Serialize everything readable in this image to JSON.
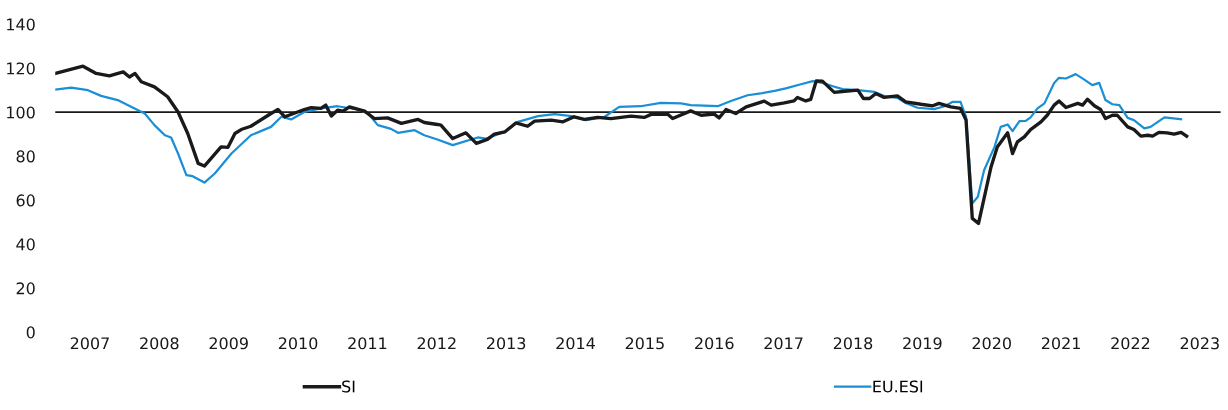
{
  "chart_data": {
    "type": "line",
    "xlim": [
      2007.0,
      2023.8
    ],
    "ylim": [
      0,
      140
    ],
    "yticks": [
      0,
      20,
      40,
      60,
      80,
      100,
      120,
      140
    ],
    "xticks": [
      {
        "value": 2007.5,
        "label": "2007"
      },
      {
        "value": 2008.5,
        "label": "2008"
      },
      {
        "value": 2009.5,
        "label": "2009"
      },
      {
        "value": 2010.5,
        "label": "2010"
      },
      {
        "value": 2011.5,
        "label": "2011"
      },
      {
        "value": 2012.5,
        "label": "2012"
      },
      {
        "value": 2013.5,
        "label": "2013"
      },
      {
        "value": 2014.5,
        "label": "2014"
      },
      {
        "value": 2015.5,
        "label": "2015"
      },
      {
        "value": 2016.5,
        "label": "2016"
      },
      {
        "value": 2017.5,
        "label": "2017"
      },
      {
        "value": 2018.5,
        "label": "2018"
      },
      {
        "value": 2019.5,
        "label": "2019"
      },
      {
        "value": 2020.5,
        "label": "2020"
      },
      {
        "value": 2021.5,
        "label": "2021"
      },
      {
        "value": 2022.5,
        "label": "2022"
      },
      {
        "value": 2023.5,
        "label": "2023"
      }
    ],
    "grid": false,
    "legend": "bottom",
    "marker": "none",
    "line_style": "solid",
    "ref_lines": [
      {
        "axis": "y",
        "value": 100,
        "color": "#1a1a1a"
      }
    ],
    "series": [
      {
        "name": "SI",
        "color": "#1a1a1a",
        "x": [
          2007.0,
          2007.4,
          2007.59,
          2007.78,
          2007.98,
          2008.07,
          2008.15,
          2008.24,
          2008.43,
          2008.62,
          2008.77,
          2008.91,
          2009.06,
          2009.15,
          2009.39,
          2009.49,
          2009.59,
          2009.68,
          2009.82,
          2010.11,
          2010.21,
          2010.31,
          2010.59,
          2010.69,
          2010.83,
          2010.9,
          2010.98,
          2011.07,
          2011.15,
          2011.24,
          2011.46,
          2011.6,
          2011.79,
          2011.99,
          2012.23,
          2012.32,
          2012.51,
          2012.56,
          2012.73,
          2012.92,
          2013.07,
          2013.23,
          2013.33,
          2013.48,
          2013.64,
          2013.81,
          2013.91,
          2014.15,
          2014.32,
          2014.48,
          2014.63,
          2014.82,
          2015.01,
          2015.3,
          2015.49,
          2015.59,
          2015.83,
          2015.9,
          2016.16,
          2016.31,
          2016.5,
          2016.57,
          2016.67,
          2016.81,
          2016.96,
          2017.22,
          2017.32,
          2017.51,
          2017.65,
          2017.7,
          2017.82,
          2017.89,
          2017.97,
          2018.06,
          2018.23,
          2018.38,
          2018.57,
          2018.65,
          2018.74,
          2018.83,
          2018.95,
          2019.14,
          2019.26,
          2019.48,
          2019.65,
          2019.74,
          2019.91,
          2020.05,
          2020.13,
          2020.22,
          2020.31,
          2020.49,
          2020.58,
          2020.73,
          2020.8,
          2020.87,
          2020.97,
          2021.06,
          2021.21,
          2021.3,
          2021.4,
          2021.47,
          2021.57,
          2021.74,
          2021.81,
          2021.88,
          2021.98,
          2022.07,
          2022.14,
          2022.24,
          2022.31,
          2022.46,
          2022.55,
          2022.65,
          2022.75,
          2022.82,
          2022.91,
          2023.03,
          2023.13,
          2023.23,
          2023.31
        ],
        "values": [
          117.6,
          120.9,
          117.6,
          116.5,
          118.3,
          116.0,
          117.6,
          113.8,
          111.5,
          107.0,
          100.1,
          90.3,
          76.7,
          75.5,
          84.2,
          84.0,
          90.3,
          92.1,
          93.6,
          99.4,
          101.2,
          97.9,
          101.2,
          102.1,
          101.7,
          103.2,
          98.2,
          100.9,
          100.5,
          102.4,
          100.5,
          97.1,
          97.4,
          94.9,
          96.7,
          95.3,
          94.4,
          94.1,
          88.0,
          90.6,
          85.8,
          87.6,
          90.0,
          91.0,
          95.1,
          93.6,
          95.9,
          96.4,
          95.6,
          97.9,
          96.7,
          97.6,
          97.1,
          98.2,
          97.6,
          99.0,
          99.1,
          97.1,
          100.6,
          98.6,
          99.1,
          97.4,
          101.2,
          99.4,
          102.4,
          105.0,
          103.2,
          104.2,
          105.1,
          106.7,
          105.1,
          105.8,
          114.2,
          114.1,
          109.0,
          109.5,
          110.0,
          106.2,
          106.2,
          108.5,
          106.7,
          107.4,
          104.7,
          103.6,
          102.9,
          104.0,
          102.4,
          101.7,
          96.4,
          51.7,
          49.4,
          75.1,
          84.2,
          90.6,
          81.2,
          86.5,
          88.8,
          92.1,
          95.6,
          98.6,
          103.2,
          105.1,
          102.1,
          104.0,
          103.2,
          105.9,
          102.9,
          101.2,
          97.1,
          98.6,
          98.6,
          93.3,
          92.1,
          89.1,
          89.5,
          89.1,
          90.8,
          90.6,
          90.0,
          90.8,
          89.1
        ]
      },
      {
        "name": "EU.ESI",
        "color": "#1a8fd6",
        "x": [
          2007.0,
          2007.23,
          2007.47,
          2007.66,
          2007.9,
          2008.1,
          2008.29,
          2008.43,
          2008.58,
          2008.67,
          2008.77,
          2008.89,
          2008.98,
          2009.15,
          2009.3,
          2009.54,
          2009.82,
          2010.11,
          2010.26,
          2010.4,
          2010.59,
          2010.83,
          2011.07,
          2011.36,
          2011.51,
          2011.65,
          2011.84,
          2011.94,
          2012.18,
          2012.32,
          2012.51,
          2012.73,
          2013.09,
          2013.21,
          2013.48,
          2013.67,
          2013.96,
          2014.2,
          2014.44,
          2014.65,
          2014.92,
          2015.13,
          2015.44,
          2015.73,
          2016.02,
          2016.16,
          2016.55,
          2016.74,
          2016.98,
          2017.17,
          2017.37,
          2017.53,
          2017.75,
          2017.92,
          2018.06,
          2018.21,
          2018.35,
          2018.57,
          2018.81,
          2018.95,
          2019.14,
          2019.26,
          2019.43,
          2019.67,
          2019.82,
          2019.94,
          2020.05,
          2020.13,
          2020.22,
          2020.3,
          2020.39,
          2020.54,
          2020.63,
          2020.73,
          2020.8,
          2020.9,
          2020.99,
          2021.06,
          2021.16,
          2021.26,
          2021.4,
          2021.47,
          2021.57,
          2021.71,
          2021.83,
          2021.95,
          2022.05,
          2022.14,
          2022.24,
          2022.34,
          2022.46,
          2022.55,
          2022.7,
          2022.79,
          2022.99,
          2023.23
        ],
        "values": [
          110.3,
          111.2,
          110.0,
          107.4,
          105.5,
          102.4,
          99.4,
          94.1,
          89.5,
          88.5,
          81.2,
          71.4,
          70.9,
          68.0,
          72.1,
          81.2,
          89.5,
          93.3,
          97.9,
          96.7,
          100.1,
          101.7,
          102.7,
          101.2,
          99.4,
          94.1,
          92.4,
          90.6,
          91.8,
          89.5,
          87.6,
          85.0,
          88.5,
          88.0,
          91.0,
          95.6,
          98.2,
          99.1,
          98.2,
          96.4,
          97.9,
          102.4,
          102.7,
          104.2,
          104.0,
          103.2,
          102.7,
          105.1,
          107.7,
          108.5,
          109.7,
          110.8,
          112.7,
          114.1,
          113.3,
          111.8,
          110.5,
          110.0,
          109.2,
          107.3,
          106.5,
          104.2,
          102.0,
          101.4,
          102.7,
          104.7,
          104.7,
          97.9,
          58.5,
          61.5,
          73.6,
          84.2,
          93.3,
          94.4,
          91.4,
          95.9,
          96.0,
          97.6,
          101.7,
          104.0,
          113.3,
          115.6,
          115.3,
          117.3,
          114.9,
          112.3,
          113.3,
          105.5,
          103.6,
          103.2,
          97.4,
          96.4,
          92.6,
          93.3,
          97.6,
          96.8
        ]
      }
    ]
  }
}
